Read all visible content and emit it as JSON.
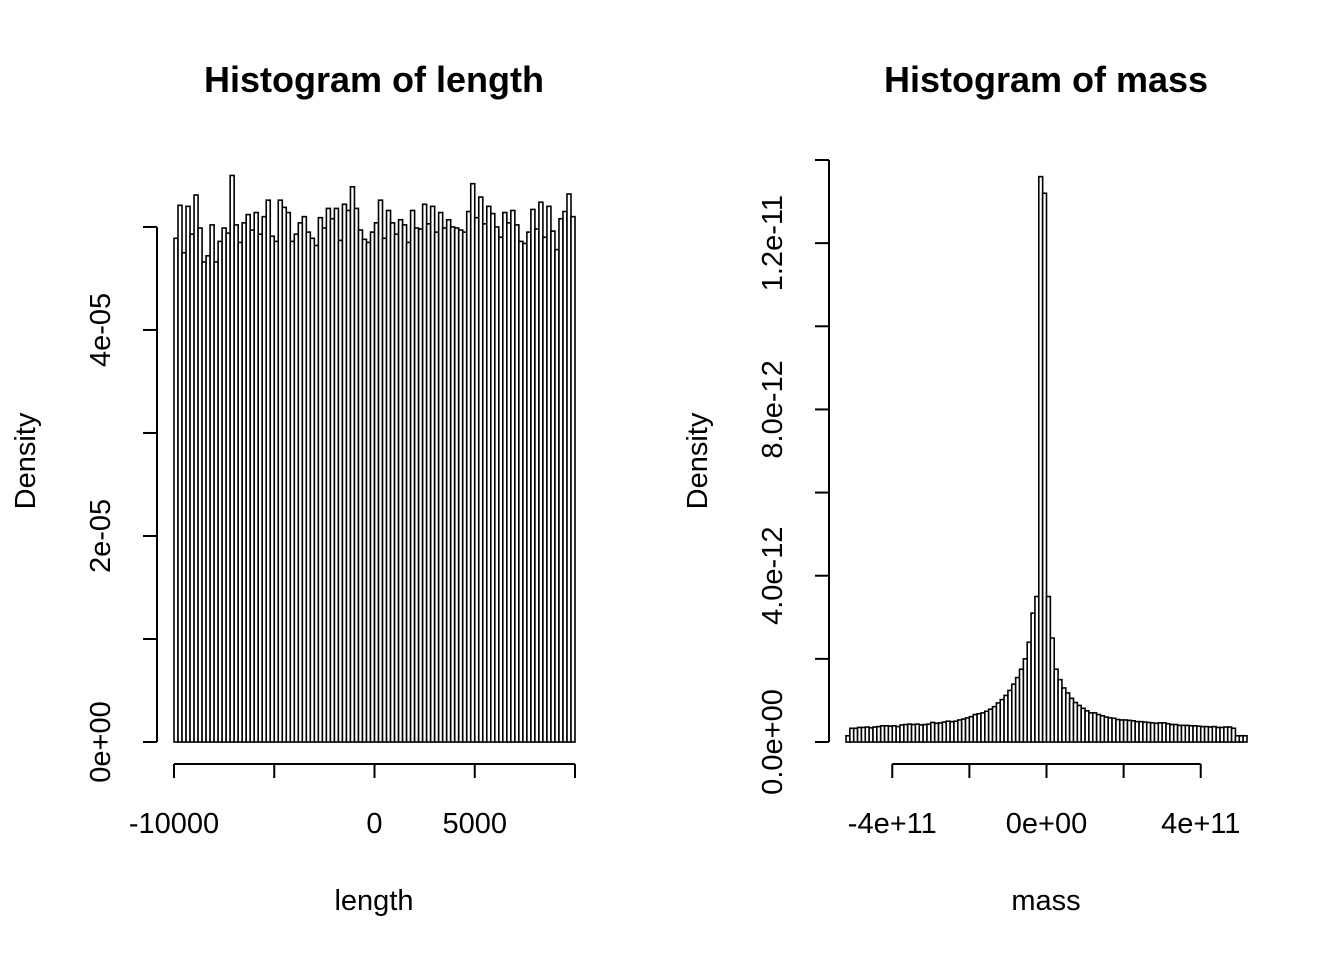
{
  "chart_data": [
    {
      "type": "bar",
      "title": "Histogram of length",
      "xlabel": "length",
      "ylabel": "Density",
      "xlim": [
        -10000,
        10000
      ],
      "ylim": [
        0,
        5.65e-05
      ],
      "x_ticks": [
        -10000,
        -5000,
        0,
        5000,
        10000
      ],
      "x_tick_labels": [
        "-10000",
        "",
        "0",
        "5000",
        ""
      ],
      "y_ticks": [
        0,
        1e-05,
        2e-05,
        3e-05,
        4e-05,
        5e-05
      ],
      "y_tick_labels": [
        "0e+00",
        "",
        "2e-05",
        "",
        "4e-05",
        ""
      ],
      "bin_start": -10000,
      "bin_width": 200,
      "values": [
        4.89e-05,
        5.21e-05,
        4.75e-05,
        5.2e-05,
        4.93e-05,
        5.31e-05,
        4.99e-05,
        4.66e-05,
        4.72e-05,
        5.02e-05,
        4.66e-05,
        4.86e-05,
        4.99e-05,
        4.94e-05,
        5.5e-05,
        5.02e-05,
        4.85e-05,
        5.04e-05,
        5.12e-05,
        4.97e-05,
        5.14e-05,
        4.93e-05,
        5.1e-05,
        5.26e-05,
        4.91e-05,
        4.86e-05,
        5.26e-05,
        5.19e-05,
        5.14e-05,
        4.86e-05,
        4.93e-05,
        5.04e-05,
        5.1e-05,
        4.95e-05,
        4.89e-05,
        4.82e-05,
        5.09e-05,
        4.99e-05,
        5.18e-05,
        5.08e-05,
        5.18e-05,
        4.87e-05,
        5.22e-05,
        5.16e-05,
        5.39e-05,
        5.18e-05,
        4.97e-05,
        4.88e-05,
        4.85e-05,
        4.95e-05,
        5.04e-05,
        5.26e-05,
        4.89e-05,
        5.16e-05,
        5.04e-05,
        4.93e-05,
        5.07e-05,
        5.02e-05,
        4.85e-05,
        5.16e-05,
        4.99e-05,
        4.98e-05,
        5.22e-05,
        5.03e-05,
        5.2e-05,
        4.95e-05,
        5.14e-05,
        4.99e-05,
        5.07e-05,
        5e-05,
        4.99e-05,
        4.97e-05,
        4.95e-05,
        5.15e-05,
        5.42e-05,
        5.09e-05,
        5.29e-05,
        5.03e-05,
        5.2e-05,
        5.13e-05,
        5e-05,
        4.9e-05,
        5.14e-05,
        5.04e-05,
        5.16e-05,
        5.02e-05,
        4.86e-05,
        4.84e-05,
        4.95e-05,
        5.17e-05,
        4.98e-05,
        5.24e-05,
        4.9e-05,
        5.2e-05,
        4.96e-05,
        4.78e-05,
        5.08e-05,
        5.15e-05,
        5.32e-05,
        5.1e-05
      ]
    },
    {
      "type": "bar",
      "title": "Histogram of mass",
      "xlabel": "mass",
      "ylabel": "Density",
      "xlim": [
        -520000000000.0,
        520000000000.0
      ],
      "ylim": [
        0,
        1.4e-11
      ],
      "x_ticks": [
        -400000000000.0,
        -200000000000.0,
        0,
        200000000000.0,
        400000000000.0
      ],
      "x_tick_labels": [
        "-4e+11",
        "",
        "0e+00",
        "",
        "4e+11"
      ],
      "y_ticks": [
        0,
        2e-12,
        4e-12,
        6e-12,
        8e-12,
        1e-11,
        1.2e-11,
        1.4e-11
      ],
      "y_tick_labels": [
        "0.0e+00",
        "",
        "4.0e-12",
        "",
        "8.0e-12",
        "",
        "1.2e-11",
        ""
      ],
      "bin_start": -520000000000.0,
      "bin_width": 10000000000.0,
      "values": [
        1.5e-13,
        3.3e-13,
        3.3e-13,
        3.5e-13,
        3.5e-13,
        3.6e-13,
        3.4e-13,
        3.6e-13,
        3.7e-13,
        3.9e-13,
        3.9e-13,
        3.8e-13,
        3.9e-13,
        3.7e-13,
        4.1e-13,
        4.2e-13,
        4.3e-13,
        4.2e-13,
        4.3e-13,
        4.1e-13,
        4.2e-13,
        4.3e-13,
        4.7e-13,
        4.5e-13,
        4.6e-13,
        4.8e-13,
        5e-13,
        4.9e-13,
        5e-13,
        5.3e-13,
        5.5e-13,
        5.8e-13,
        6.1e-13,
        6.6e-13,
        6.8e-13,
        7e-13,
        7.4e-13,
        7.9e-13,
        8.5e-13,
        9.4e-13,
        1.02e-12,
        1.12e-12,
        1.24e-12,
        1.39e-12,
        1.55e-12,
        1.75e-12,
        2e-12,
        2.4e-12,
        3.1e-12,
        3.5e-12,
        1.36e-11,
        1.32e-11,
        3.5e-12,
        2.5e-12,
        1.75e-12,
        1.5e-12,
        1.3e-12,
        1.18e-12,
        1.05e-12,
        9.5e-13,
        8.8e-13,
        8.1e-13,
        7.5e-13,
        7e-13,
        7e-13,
        6.6e-13,
        6.3e-13,
        6e-13,
        5.8e-13,
        5.7e-13,
        5.4e-13,
        5.3e-13,
        5.3e-13,
        5.2e-13,
        5.1e-13,
        4.9e-13,
        4.9e-13,
        4.8e-13,
        4.7e-13,
        4.6e-13,
        4.5e-13,
        4.6e-13,
        4.6e-13,
        4.4e-13,
        4.2e-13,
        4.2e-13,
        4e-13,
        4e-13,
        4e-13,
        3.9e-13,
        3.9e-13,
        3.8e-13,
        3.7e-13,
        3.7e-13,
        3.6e-13,
        3.7e-13,
        3.5e-13,
        3.5e-13,
        3.6e-13,
        3.6e-13,
        3.3e-13,
        1.5e-13,
        1.5e-13,
        1.5e-13
      ]
    }
  ]
}
